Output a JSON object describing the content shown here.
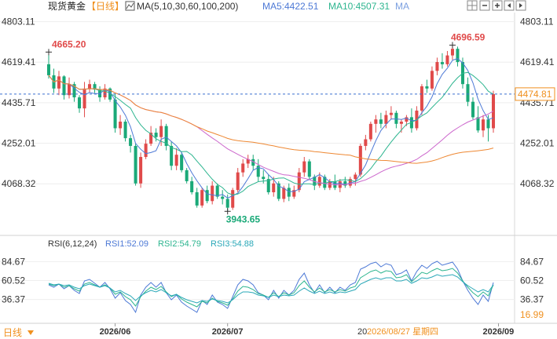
{
  "header": {
    "name": "现货黄金",
    "period": "【日线】",
    "ma_label": "MA(5,10,30,60,100,200)",
    "ma5_label": "MA5:4422.51",
    "ma10_label": "MA10:4507.31",
    "ma_more": "MA"
  },
  "toolbar": {
    "icons": [
      "grid-view-icon",
      "minus-icon",
      "plus-icon",
      "left-arrow-icon",
      "right-arrow-icon"
    ]
  },
  "rsi_panel": {
    "title": "RSI(6,12,24)",
    "rsi1_label": "RSI1:52.09",
    "rsi2_label": "RSI2:54.79",
    "rsi3_label": "RSI3:54.88"
  },
  "bottom": {
    "period_button": "日线",
    "crosshair_date_label": "2026/08/27 星期四",
    "crosshair_date_prefix": "20"
  },
  "colors": {
    "up": "#e04a4a",
    "down": "#1aa978",
    "ma5": "#4d79d6",
    "ma10": "#2db58f",
    "ma_violet": "#cc66cc",
    "ma_orange": "#ee8833",
    "ma_blue": "#7b6fd8",
    "rsi_line": "#2aa8b8",
    "accent_orange": "#f0901e"
  },
  "chart_data": {
    "type": "candlestick",
    "price_axis": {
      "ylim": [
        3870,
        4830
      ],
      "ticks": [
        "4803.11",
        "4619.41",
        "4435.71",
        "4252.01",
        "4068.32"
      ],
      "tick_values": [
        4803.11,
        4619.41,
        4435.71,
        4252.01,
        4068.32
      ]
    },
    "current_price": "4474.81",
    "current_price_value": 4474.81,
    "annotations": [
      {
        "text": "4665.20",
        "value": 4665.2,
        "index": 0
      },
      {
        "text": "4696.59",
        "value": 4696.59,
        "index": 79
      },
      {
        "text": "3943.65",
        "value": 3943.65,
        "index": 35
      }
    ],
    "x_labels": [
      {
        "text": "2026/06",
        "index": 13
      },
      {
        "text": "2026/07",
        "index": 35
      },
      {
        "text": "2026/09",
        "index": 88
      }
    ],
    "candles": [
      [
        4610,
        4665.2,
        4545,
        4560
      ],
      [
        4560,
        4590,
        4480,
        4500
      ],
      [
        4500,
        4580,
        4470,
        4555
      ],
      [
        4555,
        4560,
        4450,
        4470
      ],
      [
        4470,
        4550,
        4455,
        4520
      ],
      [
        4520,
        4530,
        4440,
        4460
      ],
      [
        4460,
        4470,
        4390,
        4410
      ],
      [
        4410,
        4530,
        4370,
        4500
      ],
      [
        4500,
        4540,
        4480,
        4520
      ],
      [
        4520,
        4530,
        4480,
        4495
      ],
      [
        4495,
        4510,
        4440,
        4460
      ],
      [
        4460,
        4520,
        4450,
        4500
      ],
      [
        4500,
        4505,
        4440,
        4450
      ],
      [
        4450,
        4480,
        4300,
        4320
      ],
      [
        4320,
        4380,
        4290,
        4350
      ],
      [
        4350,
        4360,
        4260,
        4275
      ],
      [
        4275,
        4290,
        4210,
        4240
      ],
      [
        4240,
        4250,
        4060,
        4070
      ],
      [
        4070,
        4210,
        4050,
        4190
      ],
      [
        4190,
        4270,
        4180,
        4250
      ],
      [
        4250,
        4330,
        4240,
        4300
      ],
      [
        4300,
        4320,
        4260,
        4280
      ],
      [
        4280,
        4360,
        4240,
        4330
      ],
      [
        4330,
        4340,
        4220,
        4240
      ],
      [
        4240,
        4260,
        4130,
        4150
      ],
      [
        4150,
        4230,
        4130,
        4200
      ],
      [
        4200,
        4210,
        4120,
        4130
      ],
      [
        4130,
        4140,
        4070,
        4080
      ],
      [
        4080,
        4100,
        4020,
        4030
      ],
      [
        4030,
        4050,
        3960,
        3970
      ],
      [
        3970,
        4050,
        3960,
        4040
      ],
      [
        4040,
        4060,
        3980,
        3990
      ],
      [
        3990,
        4080,
        3975,
        4060
      ],
      [
        4060,
        4070,
        4000,
        4010
      ],
      [
        4010,
        4040,
        3975,
        4000
      ],
      [
        4000,
        4020,
        3943.65,
        3960
      ],
      [
        3960,
        4050,
        3950,
        4040
      ],
      [
        4040,
        4140,
        4030,
        4120
      ],
      [
        4120,
        4180,
        4100,
        4160
      ],
      [
        4160,
        4200,
        4140,
        4180
      ],
      [
        4180,
        4200,
        4130,
        4150
      ],
      [
        4150,
        4180,
        4080,
        4100
      ],
      [
        4100,
        4130,
        4070,
        4090
      ],
      [
        4090,
        4110,
        4020,
        4030
      ],
      [
        4030,
        4100,
        4010,
        4070
      ],
      [
        4070,
        4080,
        3990,
        4000
      ],
      [
        4000,
        4060,
        3985,
        4050
      ],
      [
        4050,
        4070,
        3990,
        4010
      ],
      [
        4010,
        4060,
        4000,
        4040
      ],
      [
        4040,
        4140,
        4030,
        4120
      ],
      [
        4120,
        4190,
        4100,
        4170
      ],
      [
        4170,
        4180,
        4090,
        4100
      ],
      [
        4100,
        4110,
        4040,
        4060
      ],
      [
        4060,
        4120,
        4050,
        4100
      ],
      [
        4100,
        4110,
        4040,
        4050
      ],
      [
        4050,
        4090,
        4040,
        4080
      ],
      [
        4080,
        4110,
        4040,
        4050
      ],
      [
        4050,
        4090,
        4030,
        4080
      ],
      [
        4080,
        4100,
        4050,
        4060
      ],
      [
        4060,
        4100,
        4050,
        4090
      ],
      [
        4090,
        4120,
        4060,
        4110
      ],
      [
        4110,
        4250,
        4100,
        4240
      ],
      [
        4240,
        4290,
        4220,
        4270
      ],
      [
        4270,
        4350,
        4260,
        4340
      ],
      [
        4340,
        4380,
        4300,
        4360
      ],
      [
        4360,
        4390,
        4320,
        4340
      ],
      [
        4340,
        4400,
        4320,
        4380
      ],
      [
        4380,
        4420,
        4360,
        4390
      ],
      [
        4390,
        4400,
        4320,
        4340
      ],
      [
        4340,
        4360,
        4300,
        4350
      ],
      [
        4350,
        4380,
        4330,
        4370
      ],
      [
        4370,
        4410,
        4300,
        4320
      ],
      [
        4320,
        4420,
        4310,
        4400
      ],
      [
        4400,
        4520,
        4380,
        4510
      ],
      [
        4510,
        4540,
        4480,
        4500
      ],
      [
        4500,
        4600,
        4490,
        4580
      ],
      [
        4580,
        4640,
        4560,
        4620
      ],
      [
        4620,
        4660,
        4590,
        4610
      ],
      [
        4610,
        4670,
        4600,
        4650
      ],
      [
        4650,
        4696.59,
        4630,
        4680
      ],
      [
        4680,
        4690,
        4600,
        4620
      ],
      [
        4620,
        4640,
        4500,
        4520
      ],
      [
        4520,
        4550,
        4420,
        4440
      ],
      [
        4440,
        4460,
        4360,
        4370
      ],
      [
        4370,
        4420,
        4300,
        4310
      ],
      [
        4310,
        4380,
        4280,
        4360
      ],
      [
        4360,
        4380,
        4260,
        4320
      ],
      [
        4320,
        4490,
        4300,
        4474.81
      ]
    ],
    "rsi": {
      "ylim": [
        10,
        100
      ],
      "ticks": [
        "84.67",
        "60.52",
        "36.37",
        "16.99"
      ],
      "tick_values": [
        84.67,
        60.52,
        36.37,
        16.99
      ],
      "series": [
        {
          "name": "RSI1",
          "values": [
            55,
            52,
            56,
            50,
            54,
            48,
            44,
            60,
            62,
            57,
            52,
            58,
            50,
            38,
            45,
            35,
            30,
            20,
            42,
            52,
            58,
            52,
            58,
            45,
            36,
            42,
            33,
            28,
            24,
            20,
            35,
            30,
            42,
            33,
            30,
            25,
            40,
            55,
            62,
            60,
            55,
            45,
            42,
            36,
            48,
            38,
            48,
            42,
            48,
            62,
            70,
            55,
            45,
            55,
            45,
            52,
            45,
            52,
            48,
            55,
            58,
            75,
            78,
            82,
            84,
            78,
            82,
            80,
            68,
            70,
            74,
            60,
            72,
            80,
            76,
            82,
            85,
            80,
            82,
            84,
            75,
            60,
            48,
            38,
            30,
            42,
            34,
            58
          ]
        },
        {
          "name": "RSI2",
          "values": [
            56,
            54,
            56,
            52,
            54,
            50,
            47,
            56,
            58,
            55,
            52,
            55,
            51,
            43,
            46,
            40,
            36,
            28,
            40,
            47,
            52,
            49,
            53,
            46,
            40,
            43,
            37,
            33,
            30,
            27,
            34,
            32,
            38,
            34,
            32,
            29,
            37,
            47,
            53,
            52,
            49,
            44,
            42,
            39,
            45,
            40,
            45,
            42,
            45,
            54,
            60,
            52,
            46,
            51,
            46,
            49,
            46,
            49,
            47,
            51,
            53,
            64,
            68,
            72,
            74,
            70,
            73,
            72,
            64,
            65,
            68,
            59,
            65,
            71,
            69,
            73,
            76,
            73,
            74,
            76,
            70,
            60,
            52,
            45,
            40,
            46,
            41,
            55
          ]
        },
        {
          "name": "RSI3",
          "values": [
            57,
            55,
            56,
            54,
            55,
            52,
            50,
            54,
            56,
            54,
            52,
            54,
            51,
            46,
            48,
            44,
            41,
            35,
            41,
            45,
            48,
            46,
            49,
            45,
            41,
            43,
            39,
            36,
            34,
            32,
            35,
            34,
            37,
            35,
            34,
            32,
            36,
            42,
            46,
            46,
            45,
            42,
            41,
            39,
            42,
            40,
            42,
            41,
            42,
            47,
            51,
            47,
            44,
            47,
            44,
            46,
            44,
            46,
            45,
            47,
            49,
            56,
            59,
            62,
            64,
            62,
            64,
            64,
            60,
            60,
            62,
            57,
            60,
            64,
            63,
            65,
            68,
            66,
            67,
            68,
            65,
            59,
            54,
            50,
            46,
            49,
            46,
            55
          ]
        }
      ]
    }
  }
}
